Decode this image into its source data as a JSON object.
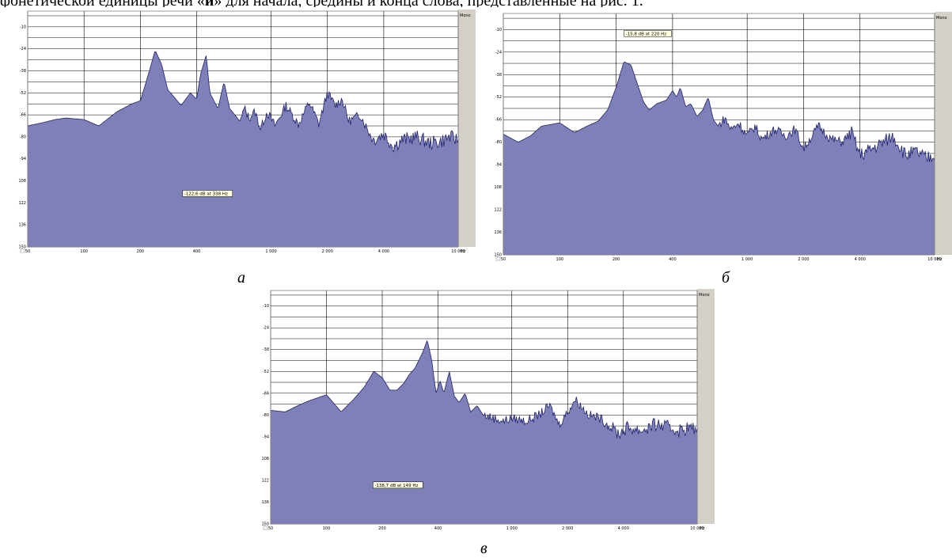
{
  "caption": {
    "before": "фонетической единицы речи «",
    "bold": "и",
    "after": "» для начала, средины и конца слова, представленные на рис. 1."
  },
  "colors": {
    "fill": "#7f80b8",
    "stroke": "#1f2270",
    "grid": "#000000",
    "frame": "#d4d0c8",
    "readout_bg": "#ffffe1"
  },
  "chart_data": [
    {
      "type": "area",
      "panel_letter": "а",
      "channel_label": "Mono",
      "readout": "-122,6 dB at 338 Hz",
      "x_scale": "log",
      "x_unit": "Hz",
      "xlim": [
        50,
        10000
      ],
      "x_ticks": [
        "50",
        "100",
        "200",
        "400",
        "1 000",
        "2 000",
        "4 000",
        "10 000"
      ],
      "ylim": [
        -150,
        0
      ],
      "y_ticks": [
        "-10",
        "-24",
        "-38",
        "-52",
        "-66",
        "-80",
        "-94",
        "-108",
        "-122",
        "-136",
        "-150"
      ],
      "grid": true,
      "x": [
        50,
        60,
        70,
        80,
        100,
        120,
        150,
        180,
        200,
        220,
        240,
        260,
        280,
        300,
        330,
        370,
        400,
        420,
        450,
        470,
        490,
        520,
        560,
        600,
        640,
        680,
        720,
        760,
        820,
        880,
        950,
        1050,
        1200,
        1400,
        1600,
        1800,
        2000,
        2200,
        2400,
        2600,
        3000,
        3500,
        4000,
        4500,
        5000,
        6000,
        7000,
        8000,
        9000,
        10000
      ],
      "y": [
        -73,
        -71,
        -69,
        -68,
        -69,
        -73,
        -64,
        -59,
        -57,
        -41,
        -25,
        -34,
        -50,
        -54,
        -60,
        -52,
        -56,
        -40,
        -28,
        -52,
        -56,
        -62,
        -45,
        -62,
        -66,
        -70,
        -62,
        -68,
        -64,
        -75,
        -64,
        -73,
        -60,
        -72,
        -58,
        -72,
        -52,
        -60,
        -56,
        -70,
        -66,
        -82,
        -78,
        -86,
        -82,
        -80,
        -84,
        -83,
        -80,
        -82
      ]
    },
    {
      "type": "area",
      "panel_letter": "б",
      "channel_label": "Mono",
      "readout": "-15,8 dB at 220 Hz",
      "x_scale": "log",
      "x_unit": "Hz",
      "xlim": [
        50,
        10000
      ],
      "x_ticks": [
        "50",
        "100",
        "200",
        "400",
        "1 000",
        "2 000",
        "4 000",
        "10 000"
      ],
      "ylim": [
        -150,
        0
      ],
      "y_ticks": [
        "-10",
        "-24",
        "-38",
        "-52",
        "-66",
        "-80",
        "-94",
        "-108",
        "-122",
        "-136",
        "-150"
      ],
      "grid": true,
      "x": [
        50,
        60,
        70,
        80,
        100,
        120,
        140,
        160,
        180,
        200,
        220,
        240,
        260,
        280,
        300,
        330,
        370,
        400,
        420,
        440,
        470,
        500,
        540,
        580,
        620,
        660,
        700,
        760,
        820,
        900,
        1000,
        1100,
        1200,
        1400,
        1600,
        1800,
        2000,
        2400,
        2800,
        3200,
        3600,
        4000,
        5000,
        6000,
        7000,
        8000,
        9000,
        10000
      ],
      "y": [
        -75,
        -80,
        -76,
        -70,
        -68,
        -74,
        -70,
        -67,
        -60,
        -46,
        -30,
        -32,
        -44,
        -55,
        -60,
        -56,
        -54,
        -48,
        -52,
        -46,
        -58,
        -56,
        -64,
        -60,
        -52,
        -66,
        -70,
        -65,
        -72,
        -68,
        -76,
        -70,
        -78,
        -72,
        -76,
        -72,
        -84,
        -70,
        -78,
        -80,
        -74,
        -88,
        -82,
        -76,
        -88,
        -86,
        -90,
        -88
      ]
    },
    {
      "type": "area",
      "panel_letter": "в",
      "channel_label": "Mono",
      "readout": "-138,7 dB at 149 Hz",
      "x_scale": "log",
      "x_unit": "Hz",
      "xlim": [
        50,
        10000
      ],
      "x_ticks": [
        "50",
        "100",
        "200",
        "400",
        "1 000",
        "2 000",
        "4 000",
        "10 000"
      ],
      "ylim": [
        -150,
        0
      ],
      "y_ticks": [
        "-10",
        "-24",
        "-38",
        "-52",
        "-66",
        "-80",
        "-94",
        "-108",
        "-122",
        "-136",
        "-150"
      ],
      "grid": true,
      "x": [
        50,
        60,
        70,
        80,
        100,
        120,
        140,
        160,
        180,
        200,
        220,
        240,
        260,
        280,
        300,
        330,
        350,
        370,
        390,
        410,
        430,
        460,
        490,
        520,
        560,
        600,
        650,
        700,
        800,
        900,
        1000,
        1200,
        1400,
        1600,
        1800,
        2000,
        2200,
        2600,
        3000,
        3400,
        3800,
        4200,
        5000,
        6000,
        7000,
        8000,
        9000,
        10000
      ],
      "y": [
        -77,
        -78,
        -74,
        -71,
        -67,
        -78,
        -70,
        -62,
        -52,
        -56,
        -64,
        -64,
        -60,
        -54,
        -50,
        -40,
        -32,
        -45,
        -66,
        -58,
        -66,
        -52,
        -68,
        -72,
        -66,
        -78,
        -74,
        -80,
        -82,
        -84,
        -82,
        -84,
        -80,
        -74,
        -86,
        -78,
        -70,
        -80,
        -82,
        -88,
        -92,
        -88,
        -90,
        -86,
        -88,
        -90,
        -88,
        -90
      ]
    }
  ]
}
